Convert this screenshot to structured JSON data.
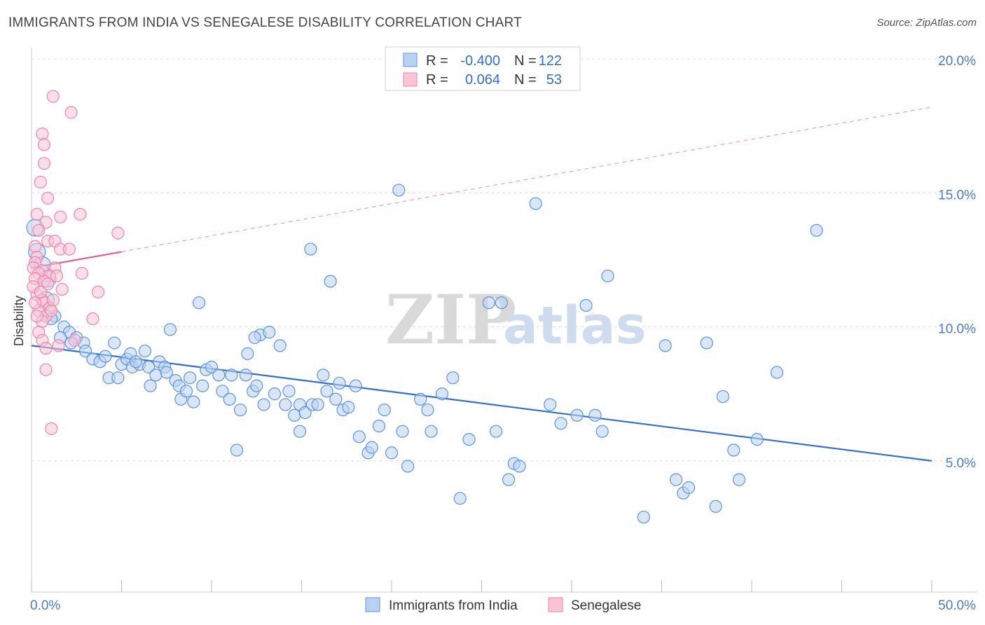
{
  "title": "IMMIGRANTS FROM INDIA VS SENEGALESE DISABILITY CORRELATION CHART",
  "source": "Source: ZipAtlas.com",
  "watermark": {
    "zip": "ZIP",
    "atlas": "atlas"
  },
  "colors": {
    "india": "#5b94e0",
    "india_fill": "#b9d1f3",
    "senegal": "#ee85a7",
    "senegal_fill": "#f7c5d6",
    "india_line": "#2f6fd1",
    "senegal_line": "#e0608f"
  },
  "legend": {
    "rows": [
      {
        "r_label": "R =",
        "r_value": "-0.400",
        "n_label": "N =",
        "n_value": "122"
      },
      {
        "r_label": "R =",
        "r_value": "0.064",
        "n_label": "N =",
        "n_value": "53"
      }
    ]
  },
  "bottom_legend": [
    "Immigrants from India",
    "Senegalese"
  ],
  "chart_data": {
    "type": "scatter",
    "title": "IMMIGRANTS FROM INDIA VS SENEGALESE DISABILITY CORRELATION CHART",
    "xlabel": "",
    "ylabel": "Disability",
    "xlim": [
      0,
      50
    ],
    "ylim": [
      0,
      20
    ],
    "x_tick_labels": [
      "0.0%",
      "50.0%"
    ],
    "y_tick_labels": [
      "5.0%",
      "10.0%",
      "15.0%",
      "20.0%"
    ],
    "y_ticks": [
      5,
      10,
      15,
      20
    ],
    "grid": true,
    "legend_position": "top-center",
    "series": [
      {
        "name": "Immigrants from India",
        "r": -0.4,
        "n": 122,
        "trend": [
          [
            0,
            9.3
          ],
          [
            50,
            5.0
          ]
        ],
        "points": [
          [
            0.2,
            13.7
          ],
          [
            0.3,
            12.8
          ],
          [
            0.6,
            12.3
          ],
          [
            0.9,
            11.8
          ],
          [
            0.8,
            11.0
          ],
          [
            1.3,
            10.4
          ],
          [
            1.8,
            10.0
          ],
          [
            2.1,
            9.8
          ],
          [
            2.5,
            9.6
          ],
          [
            2.9,
            9.4
          ],
          [
            3.0,
            9.1
          ],
          [
            3.4,
            8.8
          ],
          [
            3.8,
            8.7
          ],
          [
            4.1,
            8.9
          ],
          [
            4.3,
            8.1
          ],
          [
            4.6,
            9.4
          ],
          [
            4.8,
            8.1
          ],
          [
            5.0,
            8.6
          ],
          [
            5.3,
            8.8
          ],
          [
            5.5,
            9.0
          ],
          [
            5.6,
            8.5
          ],
          [
            6.0,
            8.6
          ],
          [
            6.3,
            9.1
          ],
          [
            6.5,
            8.5
          ],
          [
            6.6,
            7.8
          ],
          [
            6.9,
            8.2
          ],
          [
            7.1,
            8.7
          ],
          [
            7.4,
            8.5
          ],
          [
            7.5,
            8.3
          ],
          [
            7.7,
            9.9
          ],
          [
            8.0,
            8.0
          ],
          [
            8.2,
            7.8
          ],
          [
            8.3,
            7.3
          ],
          [
            8.6,
            7.6
          ],
          [
            9.0,
            7.2
          ],
          [
            9.3,
            10.9
          ],
          [
            9.5,
            7.8
          ],
          [
            9.7,
            8.4
          ],
          [
            10.0,
            8.5
          ],
          [
            10.4,
            8.2
          ],
          [
            10.6,
            7.6
          ],
          [
            11.0,
            7.3
          ],
          [
            11.1,
            8.2
          ],
          [
            11.4,
            5.4
          ],
          [
            11.6,
            6.9
          ],
          [
            11.9,
            8.2
          ],
          [
            12.0,
            9.0
          ],
          [
            12.3,
            7.6
          ],
          [
            12.5,
            7.8
          ],
          [
            12.7,
            9.7
          ],
          [
            12.9,
            7.1
          ],
          [
            13.2,
            9.8
          ],
          [
            13.5,
            7.5
          ],
          [
            13.8,
            9.3
          ],
          [
            14.1,
            7.1
          ],
          [
            14.3,
            7.6
          ],
          [
            14.6,
            6.7
          ],
          [
            14.9,
            6.1
          ],
          [
            14.9,
            7.1
          ],
          [
            15.2,
            6.8
          ],
          [
            15.5,
            12.9
          ],
          [
            15.6,
            7.1
          ],
          [
            15.9,
            7.1
          ],
          [
            16.2,
            8.2
          ],
          [
            16.4,
            7.6
          ],
          [
            16.6,
            11.7
          ],
          [
            16.9,
            7.3
          ],
          [
            17.1,
            7.9
          ],
          [
            17.3,
            6.9
          ],
          [
            17.6,
            7.0
          ],
          [
            18.0,
            7.8
          ],
          [
            18.2,
            5.9
          ],
          [
            18.7,
            5.3
          ],
          [
            18.9,
            5.5
          ],
          [
            19.3,
            6.3
          ],
          [
            19.6,
            6.9
          ],
          [
            20.0,
            5.3
          ],
          [
            20.4,
            15.1
          ],
          [
            20.6,
            6.1
          ],
          [
            20.9,
            4.8
          ],
          [
            21.6,
            7.3
          ],
          [
            22.0,
            6.9
          ],
          [
            22.2,
            6.1
          ],
          [
            22.8,
            7.5
          ],
          [
            23.4,
            8.1
          ],
          [
            23.8,
            3.6
          ],
          [
            24.3,
            5.8
          ],
          [
            25.4,
            10.9
          ],
          [
            25.8,
            6.1
          ],
          [
            26.1,
            10.9
          ],
          [
            26.5,
            4.3
          ],
          [
            26.8,
            4.9
          ],
          [
            27.1,
            4.8
          ],
          [
            28.0,
            14.6
          ],
          [
            28.8,
            7.1
          ],
          [
            29.4,
            6.4
          ],
          [
            30.3,
            6.7
          ],
          [
            30.8,
            10.8
          ],
          [
            31.3,
            6.7
          ],
          [
            31.7,
            6.1
          ],
          [
            32.0,
            11.9
          ],
          [
            34.0,
            2.9
          ],
          [
            35.2,
            9.3
          ],
          [
            35.8,
            4.3
          ],
          [
            36.2,
            3.8
          ],
          [
            36.5,
            4.0
          ],
          [
            37.5,
            9.4
          ],
          [
            38.0,
            3.3
          ],
          [
            38.4,
            7.4
          ],
          [
            39.0,
            5.4
          ],
          [
            39.3,
            4.3
          ],
          [
            40.3,
            5.8
          ],
          [
            41.4,
            8.3
          ],
          [
            43.6,
            13.6
          ],
          [
            1.1,
            10.3
          ],
          [
            1.6,
            9.6
          ],
          [
            2.2,
            9.4
          ],
          [
            5.8,
            8.7
          ],
          [
            12.4,
            9.6
          ],
          [
            8.8,
            8.1
          ]
        ]
      },
      {
        "name": "Senegalese",
        "r": 0.064,
        "n": 53,
        "trend": [
          [
            0,
            12.2
          ],
          [
            5,
            12.8
          ]
        ],
        "points": [
          [
            1.2,
            18.6
          ],
          [
            2.2,
            18.0
          ],
          [
            0.6,
            17.2
          ],
          [
            0.7,
            16.8
          ],
          [
            0.7,
            16.1
          ],
          [
            0.5,
            15.4
          ],
          [
            0.9,
            14.8
          ],
          [
            0.3,
            14.2
          ],
          [
            1.6,
            14.1
          ],
          [
            2.7,
            14.2
          ],
          [
            0.8,
            13.9
          ],
          [
            0.4,
            13.6
          ],
          [
            4.8,
            13.5
          ],
          [
            0.9,
            13.2
          ],
          [
            1.3,
            13.2
          ],
          [
            0.2,
            13.0
          ],
          [
            1.6,
            12.9
          ],
          [
            2.1,
            12.9
          ],
          [
            0.3,
            12.6
          ],
          [
            0.2,
            12.4
          ],
          [
            0.1,
            12.2
          ],
          [
            0.6,
            12.1
          ],
          [
            1.3,
            12.2
          ],
          [
            0.4,
            12.0
          ],
          [
            1.0,
            11.9
          ],
          [
            1.4,
            11.9
          ],
          [
            0.2,
            11.8
          ],
          [
            0.7,
            11.7
          ],
          [
            0.9,
            11.6
          ],
          [
            1.7,
            11.4
          ],
          [
            2.8,
            12.0
          ],
          [
            3.7,
            11.3
          ],
          [
            0.3,
            11.2
          ],
          [
            0.6,
            11.0
          ],
          [
            0.7,
            10.9
          ],
          [
            1.0,
            10.7
          ],
          [
            0.4,
            10.6
          ],
          [
            0.8,
            10.4
          ],
          [
            0.6,
            10.2
          ],
          [
            0.3,
            10.4
          ],
          [
            0.2,
            10.9
          ],
          [
            1.1,
            10.6
          ],
          [
            3.4,
            10.3
          ],
          [
            0.4,
            9.8
          ],
          [
            0.6,
            9.5
          ],
          [
            0.8,
            9.2
          ],
          [
            1.5,
            9.3
          ],
          [
            2.4,
            9.5
          ],
          [
            0.8,
            8.4
          ],
          [
            1.1,
            6.2
          ],
          [
            0.1,
            11.5
          ],
          [
            0.5,
            11.3
          ],
          [
            1.2,
            11.0
          ]
        ]
      }
    ]
  }
}
